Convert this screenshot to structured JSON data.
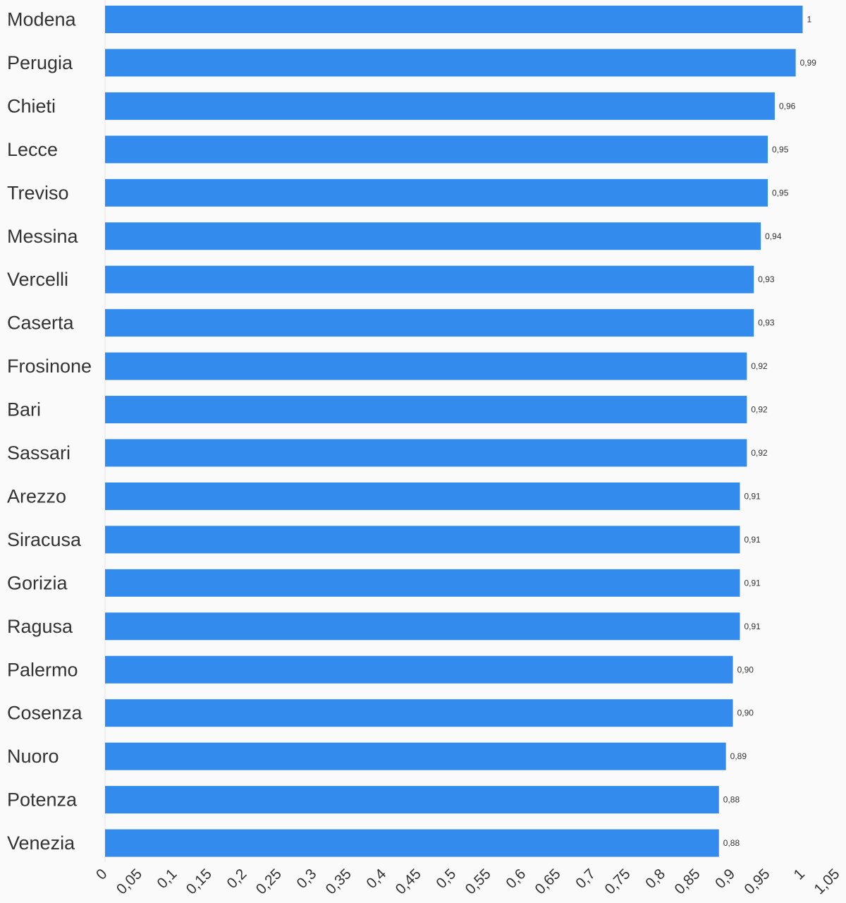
{
  "chart_data": {
    "type": "bar",
    "orientation": "horizontal",
    "title": "",
    "xlabel": "",
    "ylabel": "",
    "categories": [
      "Modena",
      "Perugia",
      "Chieti",
      "Lecce",
      "Treviso",
      "Messina",
      "Vercelli",
      "Caserta",
      "Frosinone",
      "Bari",
      "Sassari",
      "Arezzo",
      "Siracusa",
      "Gorizia",
      "Ragusa",
      "Palermo",
      "Cosenza",
      "Nuoro",
      "Potenza",
      "Venezia"
    ],
    "values": [
      1,
      0.99,
      0.96,
      0.95,
      0.95,
      0.94,
      0.93,
      0.93,
      0.92,
      0.92,
      0.92,
      0.91,
      0.91,
      0.91,
      0.91,
      0.9,
      0.9,
      0.89,
      0.88,
      0.88
    ],
    "value_labels": [
      "1",
      "0,99",
      "0,96",
      "0,95",
      "0,95",
      "0,94",
      "0,93",
      "0,93",
      "0,92",
      "0,92",
      "0,92",
      "0,91",
      "0,91",
      "0,91",
      "0,91",
      "0,90",
      "0,90",
      "0,89",
      "0,88",
      "0,88"
    ],
    "xlim": [
      0,
      1.05
    ],
    "x_ticks": [
      0,
      0.05,
      0.1,
      0.15,
      0.2,
      0.25,
      0.3,
      0.35,
      0.4,
      0.45,
      0.5,
      0.55,
      0.6,
      0.65,
      0.7,
      0.75,
      0.8,
      0.85,
      0.9,
      0.95,
      1,
      1.05
    ],
    "x_tick_labels": [
      "0",
      "0,05",
      "0,1",
      "0,15",
      "0,2",
      "0,25",
      "0,3",
      "0,35",
      "0,4",
      "0,45",
      "0,5",
      "0,55",
      "0,6",
      "0,65",
      "0,7",
      "0,75",
      "0,8",
      "0,85",
      "0,9",
      "0,95",
      "1",
      "1,05"
    ],
    "grid": false,
    "legend": "none",
    "bar_color": "#338bed",
    "background_color": "#fafafa",
    "text_color": "#333333"
  }
}
